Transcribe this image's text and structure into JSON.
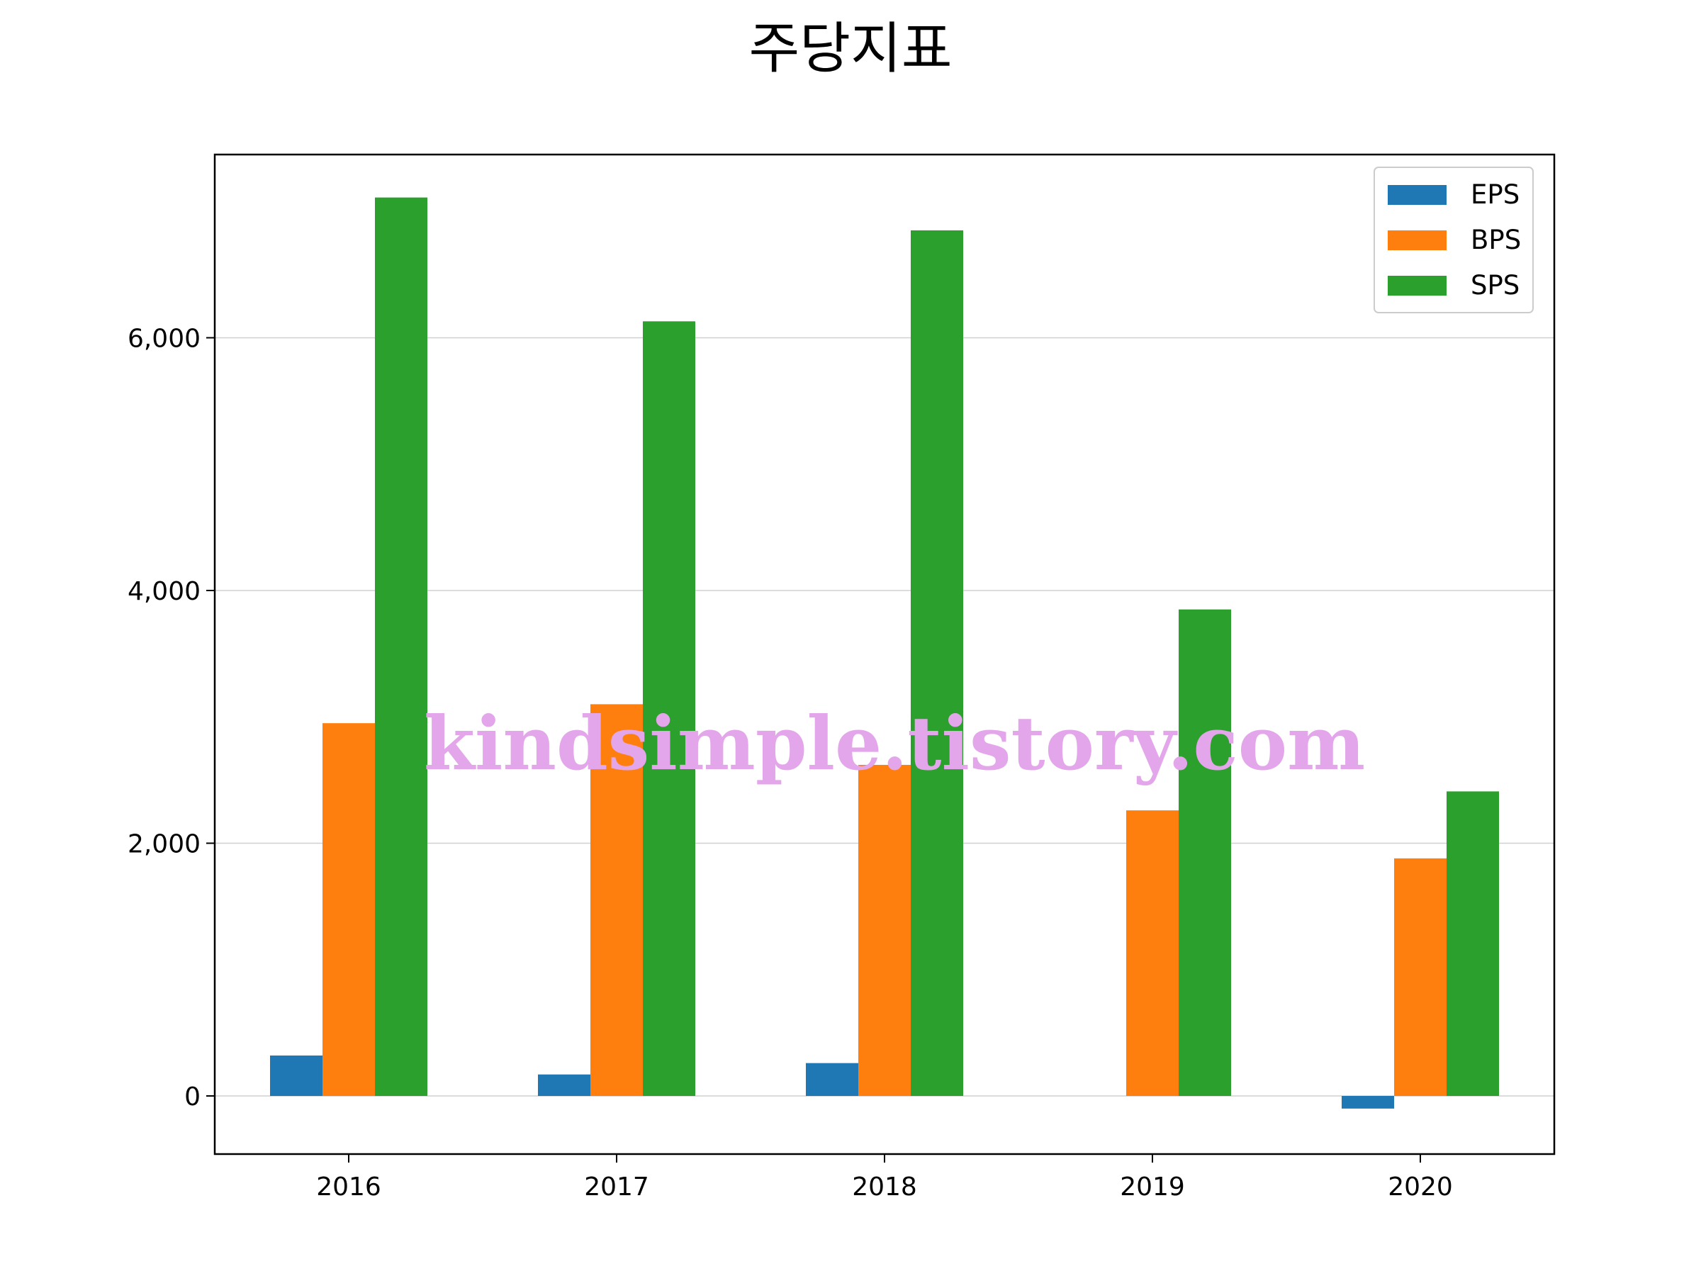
{
  "chart_data": {
    "type": "bar",
    "title": "주당지표",
    "xlabel": "",
    "ylabel": "",
    "categories": [
      "2016",
      "2017",
      "2018",
      "2019",
      "2020"
    ],
    "series": [
      {
        "name": "EPS",
        "color": "#1f77b4",
        "values": [
          320,
          170,
          260,
          0,
          -100
        ]
      },
      {
        "name": "BPS",
        "color": "#ff7f0e",
        "values": [
          2950,
          3100,
          2620,
          2260,
          1880
        ]
      },
      {
        "name": "SPS",
        "color": "#2ca02c",
        "values": [
          7110,
          6130,
          6850,
          3850,
          2410
        ]
      }
    ],
    "ylim": [
      -460,
      7450
    ],
    "yticks": [
      0,
      2000,
      4000,
      6000
    ],
    "ytick_labels": [
      "0",
      "2,000",
      "4,000",
      "6,000"
    ],
    "grid": "horizontal",
    "legend_position": "upper right",
    "watermark": "kindsimple.tistory.com"
  }
}
